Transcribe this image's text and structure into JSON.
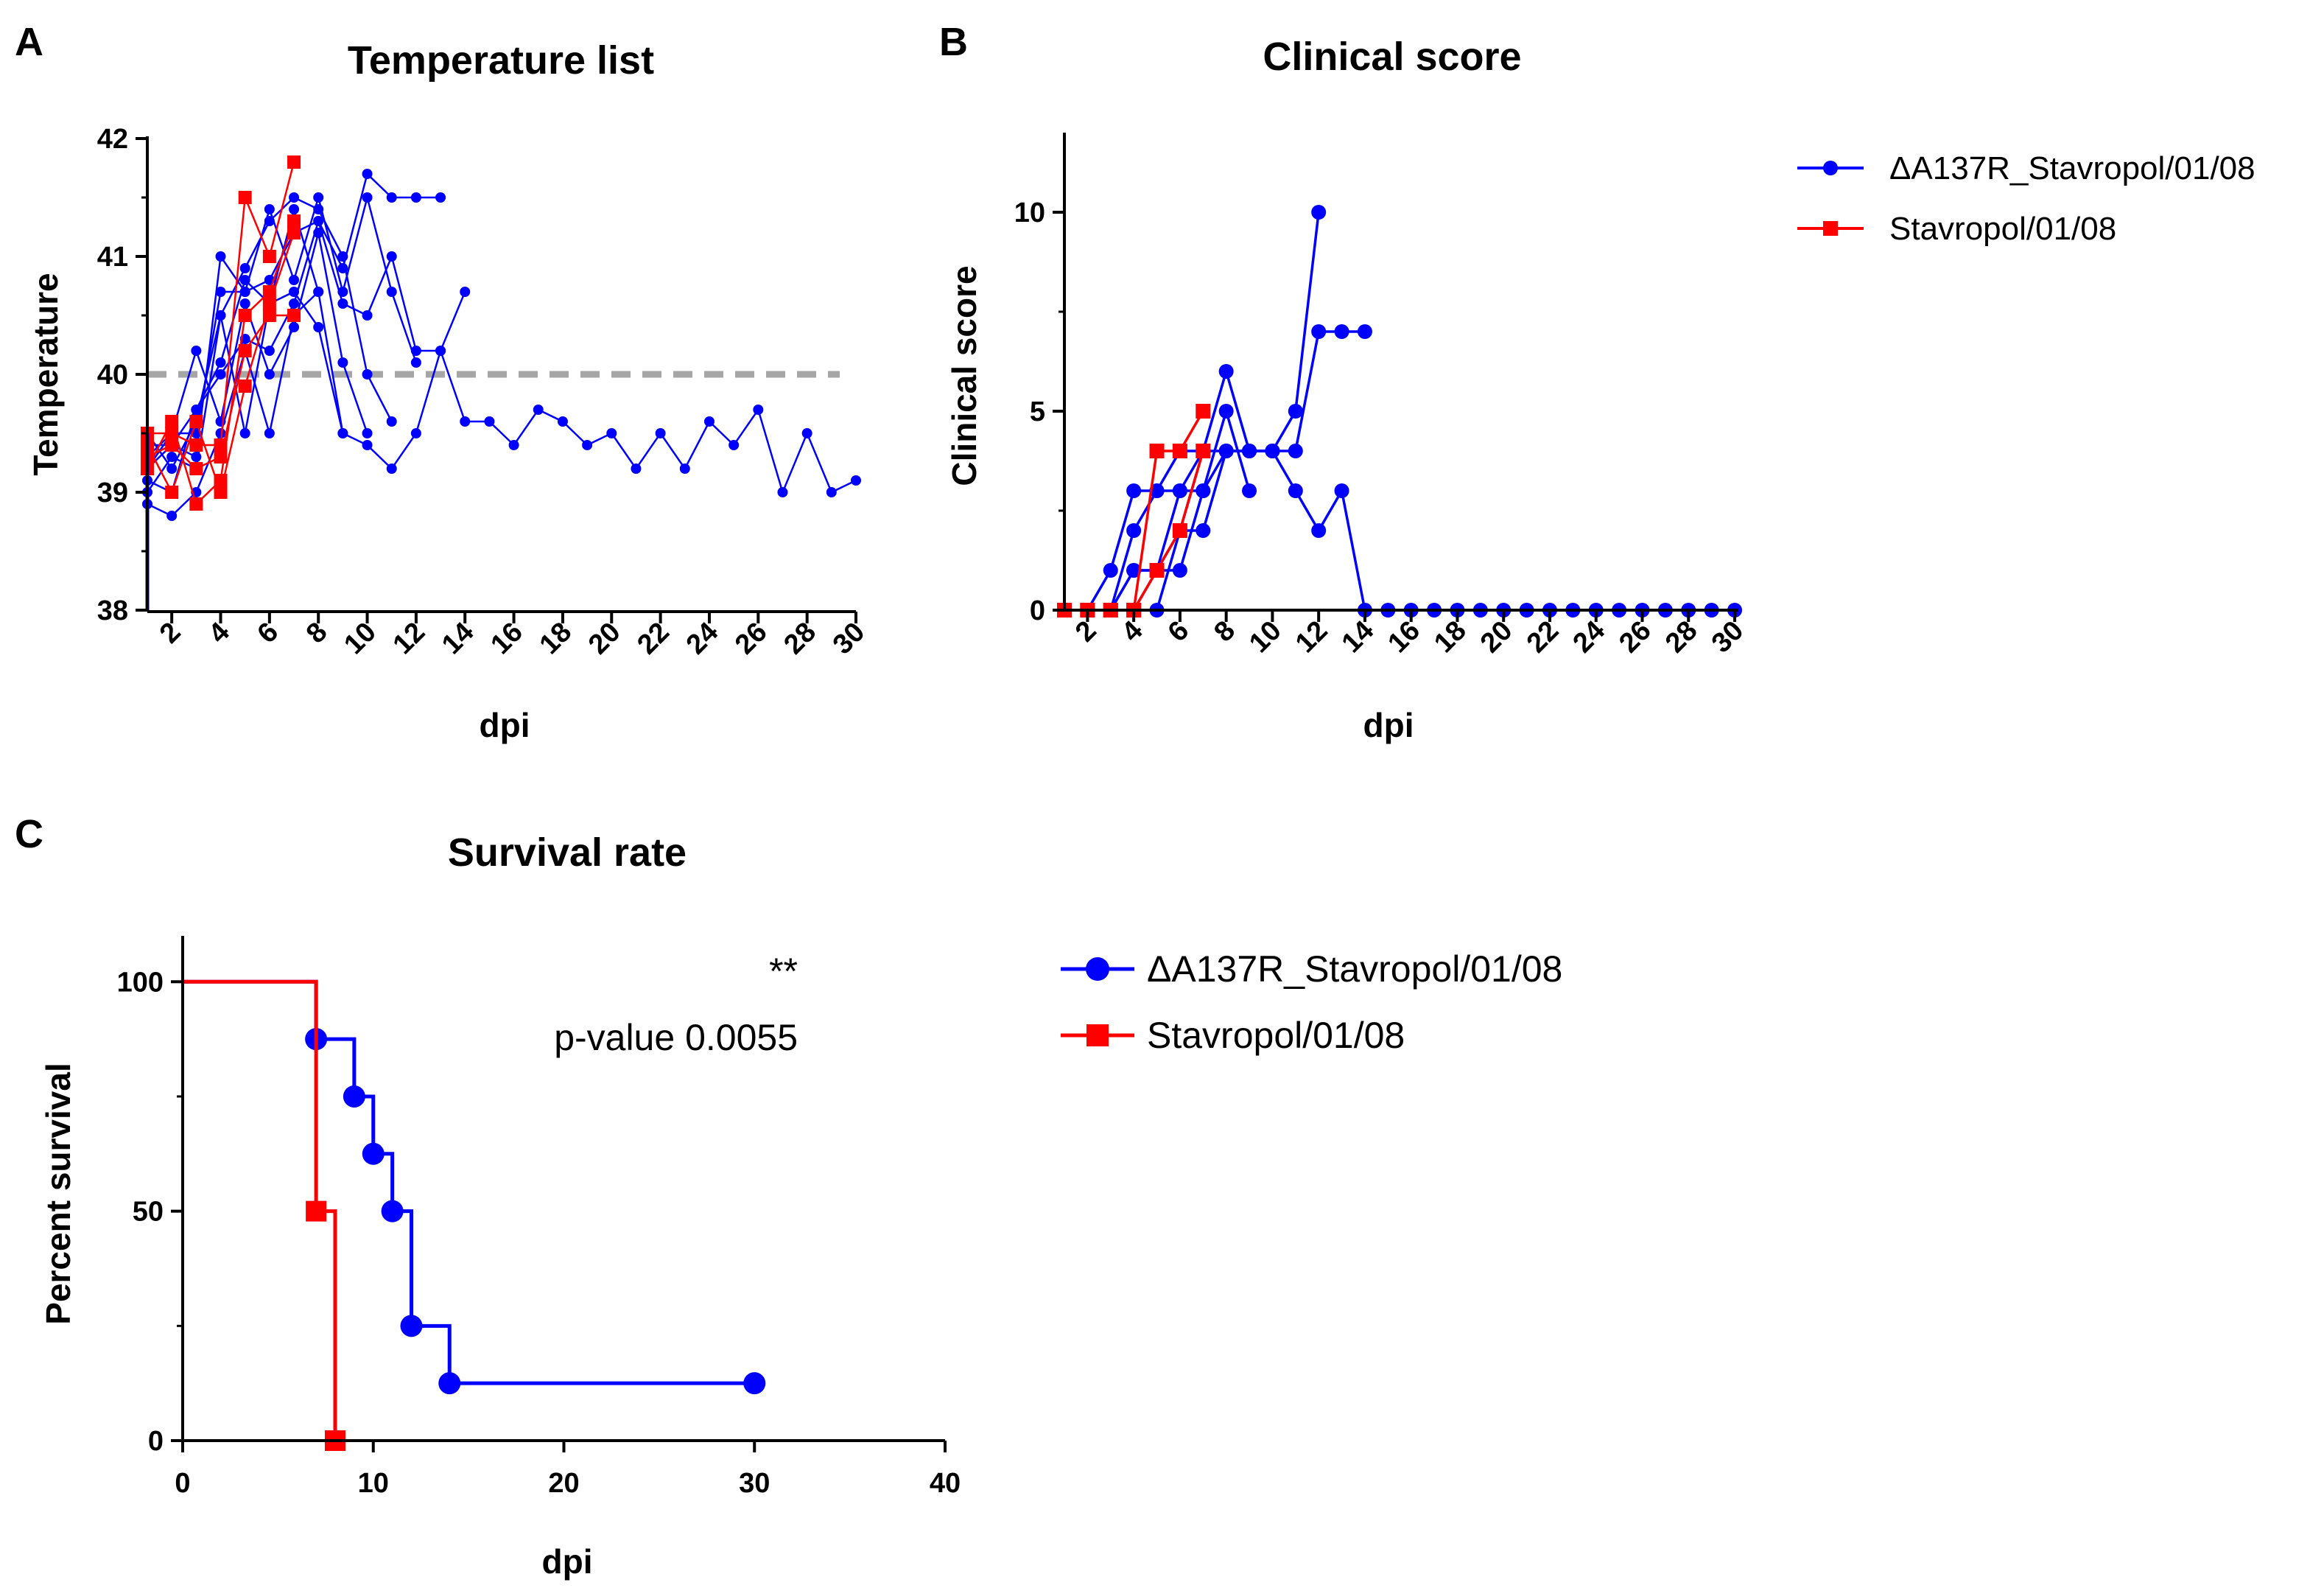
{
  "colors": {
    "blue": "#0000ff",
    "red": "#ff0000",
    "threshold": "#a6a6a6",
    "axis": "#000000"
  },
  "chart_data": [
    {
      "id": "A",
      "panel_label": "A",
      "type": "line",
      "title": "Temperature list",
      "xlabel": "dpi",
      "ylabel": "Temperature",
      "xlim": [
        1,
        30
      ],
      "ylim": [
        38,
        42
      ],
      "xticks": [
        2,
        4,
        6,
        8,
        10,
        12,
        14,
        16,
        18,
        20,
        22,
        24,
        26,
        28,
        30
      ],
      "yticks": [
        38,
        39,
        40,
        41,
        42
      ],
      "threshold": 40,
      "series": [
        {
          "name": "ΔA137R_Stavropol/01/08",
          "color": "blue",
          "marker": "circle",
          "x": [
            1,
            2,
            3,
            4,
            5,
            6,
            7,
            8,
            9,
            10,
            11
          ],
          "y": [
            39.0,
            39.3,
            39.2,
            40.5,
            40.9,
            41.3,
            41.5,
            41.4,
            41.0,
            40.0,
            39.6
          ]
        },
        {
          "name": "ΔA137R_Stavropol/01/08",
          "color": "blue",
          "marker": "circle",
          "x": [
            1,
            2,
            3,
            4,
            5,
            6,
            7,
            8,
            9,
            10,
            11,
            12
          ],
          "y": [
            39.2,
            39.5,
            39.5,
            40.7,
            40.7,
            41.4,
            40.8,
            41.5,
            40.7,
            41.5,
            40.7,
            40.1
          ]
        },
        {
          "name": "ΔA137R_Stavropol/01/08",
          "color": "blue",
          "marker": "circle",
          "x": [
            1,
            2,
            3,
            4,
            5,
            6,
            7,
            8,
            9,
            10,
            11,
            12,
            13
          ],
          "y": [
            39.4,
            39.4,
            39.3,
            41.0,
            40.7,
            40.8,
            41.2,
            41.3,
            40.9,
            41.7,
            41.5,
            41.5,
            41.5
          ]
        },
        {
          "name": "ΔA137R_Stavropol/01/08",
          "color": "blue",
          "marker": "circle",
          "x": [
            1,
            2,
            3,
            4,
            5,
            6,
            7,
            8,
            9,
            10,
            11,
            12,
            13,
            14
          ],
          "y": [
            39.1,
            39.0,
            39.7,
            40.0,
            40.3,
            40.2,
            40.6,
            41.3,
            40.6,
            40.5,
            41.0,
            40.2,
            40.2,
            40.7
          ]
        },
        {
          "name": "ΔA137R_Stavropol/01/08",
          "color": "blue",
          "marker": "circle",
          "x": [
            1,
            2,
            3,
            4,
            5,
            6,
            7,
            8,
            9,
            10,
            11,
            12,
            13,
            14,
            15,
            16,
            17,
            18,
            19,
            20,
            21,
            22,
            23,
            24,
            25,
            26,
            27,
            28,
            29,
            30
          ],
          "y": [
            38.9,
            38.8,
            39.0,
            39.5,
            40.2,
            39.5,
            40.5,
            40.7,
            39.5,
            39.4,
            39.2,
            39.5,
            40.2,
            39.6,
            39.6,
            39.4,
            39.7,
            39.6,
            39.4,
            39.5,
            39.2,
            39.5,
            39.2,
            39.6,
            39.4,
            39.7,
            39.0,
            39.5,
            39.0,
            39.1
          ]
        },
        {
          "name": "ΔA137R_Stavropol/01/08",
          "color": "blue",
          "marker": "circle",
          "x": [
            1,
            2,
            3,
            4,
            5,
            6,
            7,
            8,
            9,
            10
          ],
          "y": [
            39.3,
            39.5,
            40.2,
            39.6,
            40.6,
            40.0,
            40.4,
            41.2,
            40.1,
            39.5
          ]
        },
        {
          "name": "ΔA137R_Stavropol/01/08",
          "color": "blue",
          "marker": "circle",
          "x": [
            1,
            2,
            3,
            4,
            5,
            6,
            7,
            8,
            9
          ],
          "y": [
            39.5,
            39.2,
            39.6,
            40.5,
            39.5,
            40.6,
            40.7,
            40.4,
            39.5
          ]
        },
        {
          "name": "ΔA137R_Stavropol/01/08",
          "color": "blue",
          "marker": "circle",
          "x": [
            1,
            2,
            3,
            4,
            5,
            6,
            7,
            8
          ],
          "y": [
            39.2,
            39.4,
            39.7,
            40.1,
            40.8,
            40.6,
            41.4,
            40.7
          ]
        },
        {
          "name": "Stavropol/01/08",
          "color": "red",
          "marker": "square",
          "x": [
            1,
            2,
            3,
            4,
            5,
            6,
            7
          ],
          "y": [
            39.5,
            39.5,
            39.4,
            39.4,
            41.5,
            41.0,
            41.8
          ]
        },
        {
          "name": "Stavropol/01/08",
          "color": "red",
          "marker": "square",
          "x": [
            1,
            2,
            3,
            4,
            5,
            6,
            7
          ],
          "y": [
            39.2,
            39.6,
            38.9,
            39.1,
            40.5,
            40.7,
            41.3
          ]
        },
        {
          "name": "Stavropol/01/08",
          "color": "red",
          "marker": "square",
          "x": [
            1,
            2,
            3,
            4,
            5,
            6,
            7
          ],
          "y": [
            39.4,
            39.0,
            39.6,
            39.0,
            39.9,
            40.6,
            41.2
          ]
        },
        {
          "name": "Stavropol/01/08",
          "color": "red",
          "marker": "square",
          "x": [
            1,
            2,
            3,
            4,
            5,
            6,
            7
          ],
          "y": [
            39.3,
            39.4,
            39.2,
            39.3,
            40.2,
            40.5,
            40.5
          ]
        }
      ]
    },
    {
      "id": "B",
      "panel_label": "B",
      "type": "line",
      "title": "Clinical score",
      "xlabel": "dpi",
      "ylabel": "Clinical score",
      "xlim": [
        1,
        30
      ],
      "ylim": [
        0,
        12
      ],
      "xticks": [
        2,
        4,
        6,
        8,
        10,
        12,
        14,
        16,
        18,
        20,
        22,
        24,
        26,
        28,
        30
      ],
      "yticks": [
        0,
        5,
        10
      ],
      "legend": {
        "position": "right",
        "entries": [
          "ΔA137R_Stavropol/01/08",
          "Stavropol/01/08"
        ]
      },
      "series": [
        {
          "name": "ΔA137R_Stavropol/01/08",
          "color": "blue",
          "marker": "circle",
          "x": [
            1,
            2,
            3,
            4,
            5,
            6,
            7,
            8,
            9,
            10,
            11,
            12,
            13,
            14,
            15,
            16,
            17,
            18,
            19,
            20,
            21,
            22,
            23,
            24,
            25,
            26,
            27,
            28,
            29,
            30
          ],
          "y": [
            0,
            0,
            1,
            3,
            3,
            4,
            4,
            4,
            4,
            4,
            3,
            2,
            3,
            0,
            0,
            0,
            0,
            0,
            0,
            0,
            0,
            0,
            0,
            0,
            0,
            0,
            0,
            0,
            0,
            0
          ]
        },
        {
          "name": "ΔA137R_Stavropol/01/08",
          "color": "blue",
          "marker": "circle",
          "x": [
            1,
            2,
            3,
            4,
            5,
            6,
            7,
            8,
            9,
            10,
            11,
            12
          ],
          "y": [
            0,
            0,
            0,
            2,
            3,
            3,
            4,
            6,
            4,
            4,
            5,
            10
          ]
        },
        {
          "name": "ΔA137R_Stavropol/01/08",
          "color": "blue",
          "marker": "circle",
          "x": [
            1,
            2,
            3,
            4,
            5,
            6,
            7,
            8,
            9,
            10,
            11,
            12,
            13,
            14
          ],
          "y": [
            0,
            0,
            0,
            1,
            1,
            3,
            3,
            4,
            4,
            4,
            4,
            7,
            7,
            7
          ]
        },
        {
          "name": "ΔA137R_Stavropol/01/08",
          "color": "blue",
          "marker": "circle",
          "x": [
            1,
            2,
            3,
            4,
            5,
            6,
            7,
            8,
            9
          ],
          "y": [
            0,
            0,
            0,
            0,
            1,
            1,
            3,
            5,
            3
          ]
        },
        {
          "name": "ΔA137R_Stavropol/01/08",
          "color": "blue",
          "marker": "circle",
          "x": [
            1,
            2,
            3,
            4,
            5,
            6,
            7,
            8
          ],
          "y": [
            0,
            0,
            0,
            1,
            1,
            2,
            2,
            4
          ]
        },
        {
          "name": "ΔA137R_Stavropol/01/08",
          "color": "blue",
          "marker": "circle",
          "x": [
            1,
            2,
            3,
            4,
            5,
            6,
            7
          ],
          "y": [
            0,
            0,
            0,
            0,
            0,
            2,
            4
          ]
        },
        {
          "name": "Stavropol/01/08",
          "color": "red",
          "marker": "square",
          "x": [
            1,
            2,
            3,
            4,
            5,
            6,
            7
          ],
          "y": [
            0,
            0,
            0,
            0,
            4,
            4,
            5
          ]
        },
        {
          "name": "Stavropol/01/08",
          "color": "red",
          "marker": "square",
          "x": [
            1,
            2,
            3,
            4,
            5,
            6,
            7
          ],
          "y": [
            0,
            0,
            0,
            0,
            1,
            2,
            4
          ]
        }
      ]
    },
    {
      "id": "C",
      "panel_label": "C",
      "type": "line",
      "subtype": "kaplan-meier step",
      "title": "Survival rate",
      "xlabel": "dpi",
      "ylabel": "Percent survival",
      "xlim": [
        0,
        40
      ],
      "ylim": [
        0,
        110
      ],
      "xticks": [
        0,
        10,
        20,
        30,
        40
      ],
      "yticks": [
        0,
        50,
        100
      ],
      "annotation": {
        "stars": "**",
        "text": "p-value 0.0055"
      },
      "legend": {
        "position": "right",
        "entries": [
          "ΔA137R_Stavropol/01/08",
          "Stavropol/01/08"
        ]
      },
      "series": [
        {
          "name": "ΔA137R_Stavropol/01/08",
          "color": "blue",
          "marker": "circle",
          "steps": [
            [
              0,
              100
            ],
            [
              7,
              87.5
            ],
            [
              9,
              75
            ],
            [
              10,
              62.5
            ],
            [
              11,
              50
            ],
            [
              12,
              25
            ],
            [
              14,
              12.5
            ]
          ],
          "end_x": 30,
          "markers": [
            [
              7,
              87.5
            ],
            [
              9,
              75
            ],
            [
              10,
              62.5
            ],
            [
              11,
              50
            ],
            [
              12,
              25
            ],
            [
              14,
              12.5
            ],
            [
              30,
              12.5
            ]
          ]
        },
        {
          "name": "Stavropol/01/08",
          "color": "red",
          "marker": "square",
          "steps": [
            [
              0,
              100
            ],
            [
              7,
              50
            ],
            [
              8,
              0
            ]
          ],
          "end_x": 8,
          "markers": [
            [
              7,
              50
            ],
            [
              8,
              0
            ]
          ]
        }
      ]
    }
  ]
}
